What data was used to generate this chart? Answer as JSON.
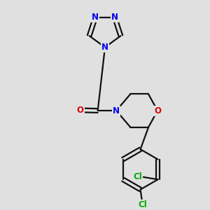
{
  "bg_color": "#e0e0e0",
  "bond_color": "#111111",
  "N_color": "#0000ee",
  "O_color": "#dd0000",
  "Cl_color": "#00aa00",
  "lw": 1.6,
  "fs": 8.5,
  "xlim": [
    0,
    10
  ],
  "ylim": [
    0,
    10
  ]
}
